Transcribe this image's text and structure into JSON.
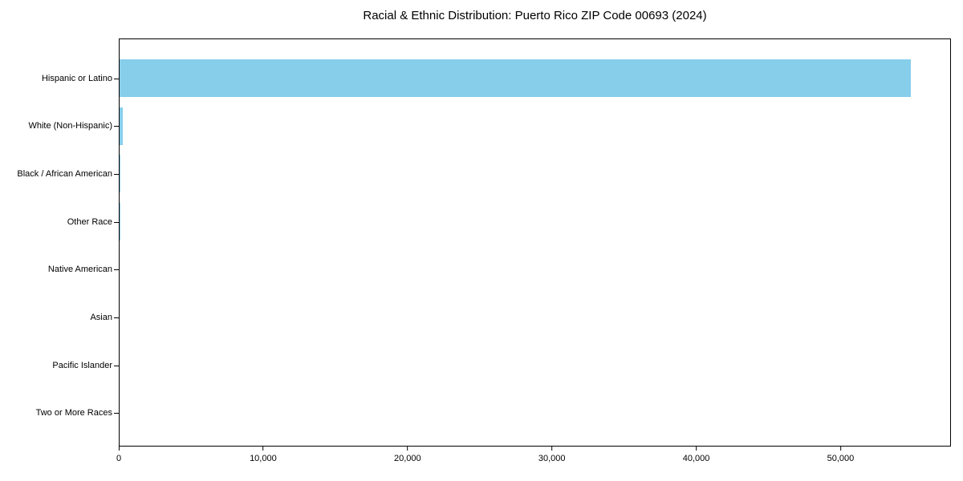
{
  "title": "Racial & Ethnic Distribution: Puerto Rico ZIP Code 00693 (2024)",
  "colors": {
    "background": "#ffffff",
    "bar": "#87CEEB",
    "axis": "#000000",
    "text": "#000000"
  },
  "chart_data": {
    "type": "bar",
    "orientation": "horizontal",
    "title": "Racial & Ethnic Distribution: Puerto Rico ZIP Code 00693 (2024)",
    "categories": [
      "Hispanic or Latino",
      "White (Non-Hispanic)",
      "Black / African American",
      "Other Race",
      "Native American",
      "Asian",
      "Pacific Islander",
      "Two or More Races"
    ],
    "values": [
      54900,
      250,
      50,
      40,
      0,
      0,
      0,
      0
    ],
    "xlabel": "",
    "ylabel": "",
    "xlim": [
      0,
      57645
    ],
    "xticks": [
      0,
      10000,
      20000,
      30000,
      40000,
      50000
    ],
    "xtick_labels": [
      "0",
      "10,000",
      "20,000",
      "30,000",
      "40,000",
      "50,000"
    ],
    "bar_color": "#87CEEB",
    "grid": false,
    "legend": null
  }
}
